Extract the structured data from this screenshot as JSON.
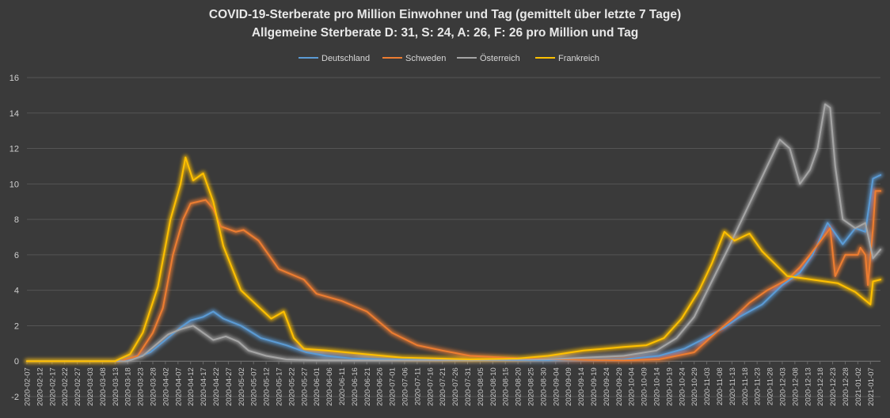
{
  "chart_data": {
    "type": "line",
    "title": "COVID-19-Sterberate pro Million Einwohner und Tag (gemittelt über letzte 7 Tage)",
    "subtitle": "Allgemeine Sterberate D: 31, S: 24, A: 26, F: 26 pro Million und Tag",
    "xlabel": "",
    "ylabel": "",
    "ylim": [
      -2,
      16
    ],
    "yticks": [
      -2,
      0,
      2,
      4,
      6,
      8,
      10,
      12,
      14,
      16
    ],
    "grid": true,
    "legend_position": "top-center",
    "x_start": "2020-02-07",
    "x_end": "2021-01-11",
    "tick_labels": [
      "2020-02-07",
      "2020-02-12",
      "2020-02-17",
      "2020-02-22",
      "2020-02-27",
      "2020-03-03",
      "2020-03-08",
      "2020-03-13",
      "2020-03-18",
      "2020-03-23",
      "2020-03-28",
      "2020-04-02",
      "2020-04-07",
      "2020-04-12",
      "2020-04-17",
      "2020-04-22",
      "2020-04-27",
      "2020-05-02",
      "2020-05-07",
      "2020-05-12",
      "2020-05-17",
      "2020-05-22",
      "2020-05-27",
      "2020-06-01",
      "2020-06-06",
      "2020-06-11",
      "2020-06-16",
      "2020-06-21",
      "2020-06-26",
      "2020-07-01",
      "2020-07-06",
      "2020-07-11",
      "2020-07-16",
      "2020-07-21",
      "2020-07-26",
      "2020-07-31",
      "2020-08-05",
      "2020-08-10",
      "2020-08-15",
      "2020-08-20",
      "2020-08-25",
      "2020-08-30",
      "2020-09-04",
      "2020-09-09",
      "2020-09-14",
      "2020-09-19",
      "2020-09-24",
      "2020-09-29",
      "2020-10-04",
      "2020-10-09",
      "2020-10-14",
      "2020-10-19",
      "2020-10-24",
      "2020-10-29",
      "2020-11-03",
      "2020-11-08",
      "2020-11-13",
      "2020-11-18",
      "2020-11-23",
      "2020-11-28",
      "2020-12-03",
      "2020-12-08",
      "2020-12-13",
      "2020-12-18",
      "2020-12-23",
      "2020-12-28",
      "2021-01-02",
      "2021-01-07"
    ],
    "series": [
      {
        "name": "Deutschland",
        "color": "#5b9bd5",
        "points": [
          [
            "2020-02-07",
            0
          ],
          [
            "2020-03-13",
            0
          ],
          [
            "2020-03-20",
            0.1
          ],
          [
            "2020-03-27",
            0.5
          ],
          [
            "2020-04-02",
            1.2
          ],
          [
            "2020-04-08",
            1.9
          ],
          [
            "2020-04-12",
            2.3
          ],
          [
            "2020-04-17",
            2.5
          ],
          [
            "2020-04-21",
            2.8
          ],
          [
            "2020-04-25",
            2.4
          ],
          [
            "2020-05-02",
            2.0
          ],
          [
            "2020-05-10",
            1.3
          ],
          [
            "2020-05-20",
            0.9
          ],
          [
            "2020-05-28",
            0.5
          ],
          [
            "2020-06-05",
            0.3
          ],
          [
            "2020-06-15",
            0.15
          ],
          [
            "2020-07-01",
            0.1
          ],
          [
            "2020-08-01",
            0.06
          ],
          [
            "2020-09-01",
            0.05
          ],
          [
            "2020-10-01",
            0.1
          ],
          [
            "2020-10-15",
            0.3
          ],
          [
            "2020-10-25",
            0.7
          ],
          [
            "2020-11-01",
            1.2
          ],
          [
            "2020-11-10",
            1.9
          ],
          [
            "2020-11-16",
            2.5
          ],
          [
            "2020-11-25",
            3.2
          ],
          [
            "2020-12-03",
            4.3
          ],
          [
            "2020-12-10",
            5.0
          ],
          [
            "2020-12-15",
            6.0
          ],
          [
            "2020-12-21",
            7.8
          ],
          [
            "2020-12-24",
            7.2
          ],
          [
            "2020-12-27",
            6.6
          ],
          [
            "2021-01-01",
            7.5
          ],
          [
            "2021-01-05",
            7.3
          ],
          [
            "2021-01-08",
            10.3
          ],
          [
            "2021-01-11",
            10.5
          ]
        ]
      },
      {
        "name": "Schweden",
        "color": "#ed7d31",
        "points": [
          [
            "2020-02-07",
            0
          ],
          [
            "2020-03-15",
            0
          ],
          [
            "2020-03-22",
            0.3
          ],
          [
            "2020-03-28",
            1.6
          ],
          [
            "2020-04-01",
            3.0
          ],
          [
            "2020-04-05",
            6.0
          ],
          [
            "2020-04-09",
            8.0
          ],
          [
            "2020-04-12",
            8.9
          ],
          [
            "2020-04-18",
            9.1
          ],
          [
            "2020-04-21",
            8.6
          ],
          [
            "2020-04-24",
            7.6
          ],
          [
            "2020-04-30",
            7.3
          ],
          [
            "2020-05-03",
            7.4
          ],
          [
            "2020-05-09",
            6.8
          ],
          [
            "2020-05-17",
            5.2
          ],
          [
            "2020-05-27",
            4.6
          ],
          [
            "2020-06-01",
            3.8
          ],
          [
            "2020-06-11",
            3.4
          ],
          [
            "2020-06-21",
            2.8
          ],
          [
            "2020-07-01",
            1.6
          ],
          [
            "2020-07-11",
            0.9
          ],
          [
            "2020-07-21",
            0.6
          ],
          [
            "2020-08-01",
            0.3
          ],
          [
            "2020-08-15",
            0.2
          ],
          [
            "2020-09-01",
            0.1
          ],
          [
            "2020-10-01",
            0.05
          ],
          [
            "2020-10-15",
            0.1
          ],
          [
            "2020-10-29",
            0.5
          ],
          [
            "2020-11-05",
            1.4
          ],
          [
            "2020-11-14",
            2.5
          ],
          [
            "2020-11-20",
            3.3
          ],
          [
            "2020-11-27",
            4.0
          ],
          [
            "2020-12-05",
            4.6
          ],
          [
            "2020-12-10",
            5.3
          ],
          [
            "2020-12-14",
            6.0
          ],
          [
            "2020-12-22",
            7.5
          ],
          [
            "2020-12-24",
            4.8
          ],
          [
            "2020-12-28",
            6.0
          ],
          [
            "2021-01-02",
            6.0
          ],
          [
            "2021-01-03",
            6.4
          ],
          [
            "2021-01-05",
            6.0
          ],
          [
            "2021-01-06",
            4.3
          ],
          [
            "2021-01-08",
            7.5
          ],
          [
            "2021-01-09",
            9.6
          ],
          [
            "2021-01-11",
            9.6
          ]
        ]
      },
      {
        "name": "Österreich",
        "color": "#a5a5a5",
        "points": [
          [
            "2020-02-07",
            0
          ],
          [
            "2020-03-18",
            0
          ],
          [
            "2020-03-24",
            0.3
          ],
          [
            "2020-03-29",
            0.9
          ],
          [
            "2020-04-03",
            1.5
          ],
          [
            "2020-04-08",
            1.8
          ],
          [
            "2020-04-13",
            2.0
          ],
          [
            "2020-04-17",
            1.6
          ],
          [
            "2020-04-21",
            1.2
          ],
          [
            "2020-04-26",
            1.4
          ],
          [
            "2020-05-01",
            1.1
          ],
          [
            "2020-05-05",
            0.6
          ],
          [
            "2020-05-12",
            0.3
          ],
          [
            "2020-05-20",
            0.1
          ],
          [
            "2020-06-01",
            0.05
          ],
          [
            "2020-07-01",
            0.05
          ],
          [
            "2020-08-01",
            0.05
          ],
          [
            "2020-09-01",
            0.1
          ],
          [
            "2020-10-01",
            0.3
          ],
          [
            "2020-10-14",
            0.6
          ],
          [
            "2020-10-22",
            1.3
          ],
          [
            "2020-10-29",
            2.5
          ],
          [
            "2020-11-05",
            4.5
          ],
          [
            "2020-11-12",
            6.5
          ],
          [
            "2020-11-17",
            8.0
          ],
          [
            "2020-11-22",
            9.5
          ],
          [
            "2020-11-27",
            11.0
          ],
          [
            "2020-12-02",
            12.5
          ],
          [
            "2020-12-06",
            12.0
          ],
          [
            "2020-12-10",
            10.0
          ],
          [
            "2020-12-14",
            10.8
          ],
          [
            "2020-12-17",
            12.0
          ],
          [
            "2020-12-20",
            14.5
          ],
          [
            "2020-12-22",
            14.3
          ],
          [
            "2020-12-24",
            11.0
          ],
          [
            "2020-12-27",
            8.0
          ],
          [
            "2021-01-01",
            7.5
          ],
          [
            "2021-01-05",
            7.8
          ],
          [
            "2021-01-08",
            5.8
          ],
          [
            "2021-01-11",
            6.3
          ]
        ]
      },
      {
        "name": "Frankreich",
        "color": "#ffc000",
        "points": [
          [
            "2020-02-07",
            0
          ],
          [
            "2020-03-13",
            0
          ],
          [
            "2020-03-19",
            0.4
          ],
          [
            "2020-03-24",
            1.6
          ],
          [
            "2020-03-30",
            4.2
          ],
          [
            "2020-04-04",
            8.0
          ],
          [
            "2020-04-08",
            10.0
          ],
          [
            "2020-04-10",
            11.5
          ],
          [
            "2020-04-13",
            10.2
          ],
          [
            "2020-04-17",
            10.6
          ],
          [
            "2020-04-21",
            9.0
          ],
          [
            "2020-04-25",
            6.5
          ],
          [
            "2020-05-02",
            4.0
          ],
          [
            "2020-05-08",
            3.2
          ],
          [
            "2020-05-14",
            2.4
          ],
          [
            "2020-05-19",
            2.8
          ],
          [
            "2020-05-23",
            1.3
          ],
          [
            "2020-05-27",
            0.7
          ],
          [
            "2020-06-05",
            0.6
          ],
          [
            "2020-06-20",
            0.4
          ],
          [
            "2020-07-05",
            0.2
          ],
          [
            "2020-08-01",
            0.1
          ],
          [
            "2020-08-20",
            0.15
          ],
          [
            "2020-09-01",
            0.3
          ],
          [
            "2020-09-15",
            0.6
          ],
          [
            "2020-10-01",
            0.8
          ],
          [
            "2020-10-10",
            0.9
          ],
          [
            "2020-10-17",
            1.3
          ],
          [
            "2020-10-24",
            2.4
          ],
          [
            "2020-10-31",
            4.0
          ],
          [
            "2020-11-05",
            5.5
          ],
          [
            "2020-11-10",
            7.3
          ],
          [
            "2020-11-14",
            6.8
          ],
          [
            "2020-11-20",
            7.2
          ],
          [
            "2020-11-25",
            6.2
          ],
          [
            "2020-11-30",
            5.5
          ],
          [
            "2020-12-05",
            4.8
          ],
          [
            "2020-12-15",
            4.6
          ],
          [
            "2020-12-25",
            4.4
          ],
          [
            "2021-01-01",
            3.9
          ],
          [
            "2021-01-07",
            3.2
          ],
          [
            "2021-01-08",
            4.5
          ],
          [
            "2021-01-11",
            4.6
          ]
        ]
      }
    ]
  }
}
